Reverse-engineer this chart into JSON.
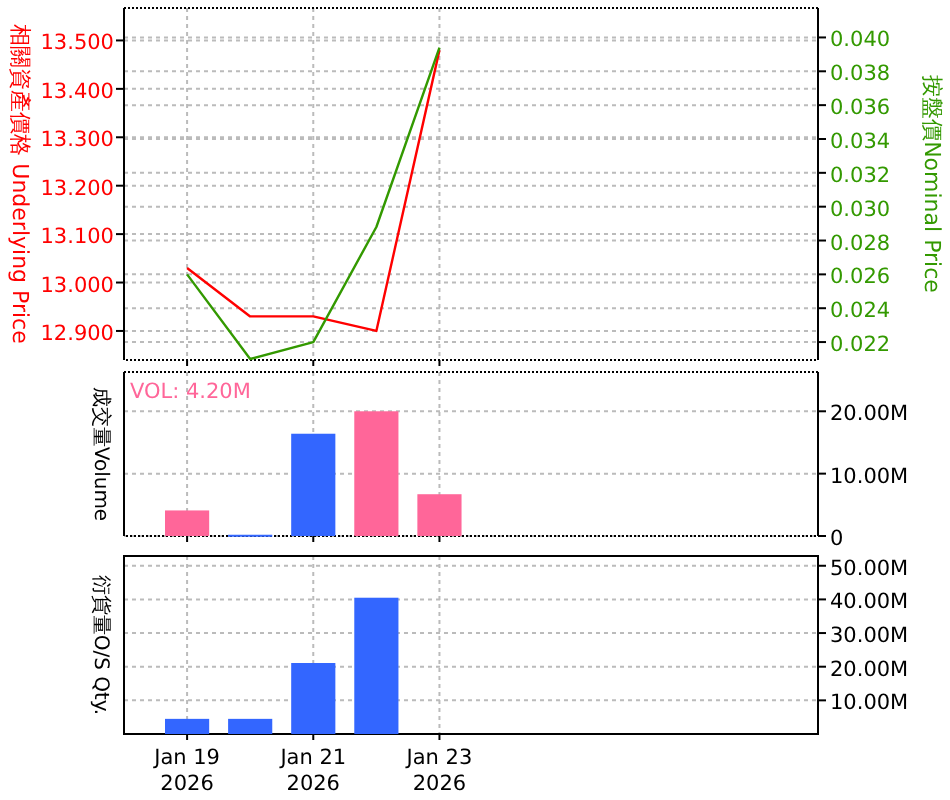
{
  "chart_data": [
    {
      "type": "line",
      "ylabel": "相關資產價格 Underlying Price",
      "y2label": "按盤價Nominal Price",
      "x": [
        "2026-01-19",
        "2026-01-20",
        "2026-01-21",
        "2026-01-22",
        "2026-01-23"
      ],
      "series": [
        {
          "color": "#ff0000",
          "values": [
            13.03,
            12.93,
            12.93,
            12.9,
            13.48
          ]
        },
        {
          "color": "#339900",
          "axis": "y2",
          "values": [
            0.026,
            0.021,
            0.022,
            0.0288,
            0.0394
          ]
        }
      ],
      "xlim": [
        "2026-01-18",
        "2026-01-29"
      ],
      "xticks": [
        {
          "value": "2026-01-19",
          "label": null
        },
        {
          "value": "2026-01-21",
          "label": null
        },
        {
          "value": "2026-01-23",
          "label": null
        }
      ],
      "ylim": [
        12.84,
        13.567
      ],
      "yticks": [
        {
          "value": 12.9,
          "label": "12.900"
        },
        {
          "value": 13.0,
          "label": "13.000"
        },
        {
          "value": 13.1,
          "label": "13.100"
        },
        {
          "value": 13.2,
          "label": "13.200"
        },
        {
          "value": 13.3,
          "label": "13.300"
        },
        {
          "value": 13.4,
          "label": "13.400"
        },
        {
          "value": 13.5,
          "label": "13.500"
        }
      ],
      "y2lim": [
        0.02094,
        0.04174
      ],
      "y2ticks": [
        {
          "value": 0.022,
          "label": "0.022"
        },
        {
          "value": 0.024,
          "label": "0.024"
        },
        {
          "value": 0.026,
          "label": "0.026"
        },
        {
          "value": 0.028,
          "label": "0.028"
        },
        {
          "value": 0.03,
          "label": "0.030"
        },
        {
          "value": 0.032,
          "label": "0.032"
        },
        {
          "value": 0.034,
          "label": "0.034"
        },
        {
          "value": 0.036,
          "label": "0.036"
        },
        {
          "value": 0.038,
          "label": "0.038"
        },
        {
          "value": 0.04,
          "label": "0.040"
        }
      ],
      "grid": true,
      "tick_labels": "y"
    },
    {
      "type": "bar",
      "ylabel": "成交量Volume",
      "x": [
        "2026-01-19",
        "2026-01-20",
        "2026-01-21",
        "2026-01-22",
        "2026-01-23"
      ],
      "series": [
        {
          "axis": "y2",
          "colors": [
            "#ff6699",
            "#3366ff",
            "#3366ff",
            "#ff6699",
            "#ff6699"
          ],
          "values": [
            4.1,
            0.2,
            16.4,
            20.0,
            6.7
          ]
        }
      ],
      "xlim": [
        "2026-01-18",
        "2026-01-29"
      ],
      "xticks": [
        {
          "value": "2026-01-19",
          "label": null
        },
        {
          "value": "2026-01-21",
          "label": null
        },
        {
          "value": "2026-01-23",
          "label": null
        }
      ],
      "y2lim": [
        0,
        26.3
      ],
      "y2ticks": [
        {
          "value": 0,
          "label": "0"
        },
        {
          "value": 10,
          "label": "10.00M"
        },
        {
          "value": 20,
          "label": "20.00M"
        }
      ],
      "annotations": [
        "VOL: 4.20M"
      ],
      "grid": true,
      "tick_labels": "y"
    },
    {
      "type": "bar",
      "ylabel": "衍貨量O/S Qty.",
      "series": [
        {
          "axis": "y2",
          "x": [
            "2026-01-19",
            "2026-01-20",
            "2026-01-21",
            "2026-01-22"
          ],
          "colors": [
            "#3366ff",
            "#3366ff",
            "#3366ff",
            "#3366ff"
          ],
          "values": [
            4.5,
            4.5,
            21.1,
            40.5
          ]
        }
      ],
      "xlim": [
        "2026-01-18",
        "2026-01-29"
      ],
      "xticks": [
        {
          "value": "2026-01-19",
          "label": "Jan 19\n2026"
        },
        {
          "value": "2026-01-21",
          "label": "Jan 21\n2026"
        },
        {
          "value": "2026-01-23",
          "label": "Jan 23\n2026"
        }
      ],
      "y2lim": [
        0,
        52.9
      ],
      "y2ticks": [
        {
          "value": 10,
          "label": "10.00M"
        },
        {
          "value": 20,
          "label": "20.00M"
        },
        {
          "value": 30,
          "label": "30.00M"
        },
        {
          "value": 40,
          "label": "40.00M"
        },
        {
          "value": 50,
          "label": "50.00M"
        }
      ],
      "grid": true
    }
  ]
}
